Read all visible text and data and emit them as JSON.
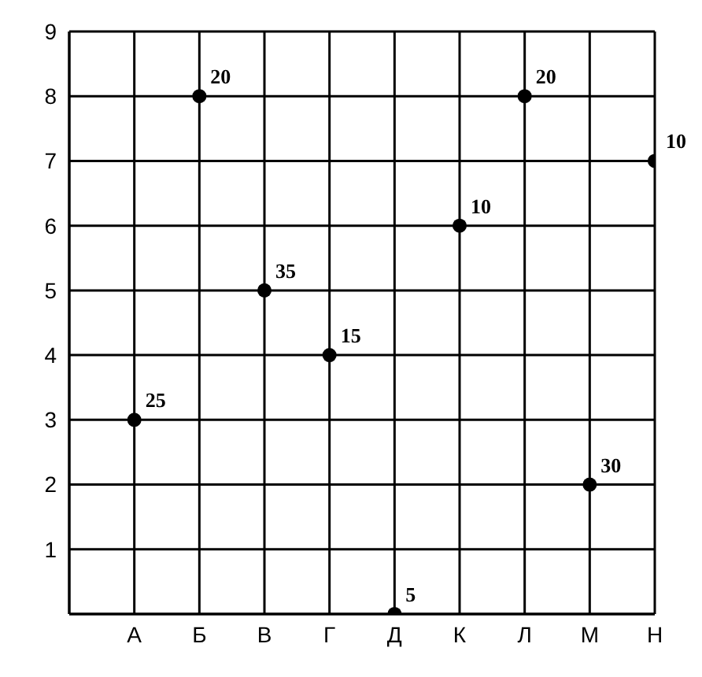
{
  "chart_data": {
    "type": "scatter",
    "categories": [
      "А",
      "Б",
      "В",
      "Г",
      "Д",
      "К",
      "Л",
      "М",
      "Н"
    ],
    "series": [
      {
        "color": "#000000",
        "values": [
          3,
          8,
          5,
          4,
          0,
          6,
          8,
          2,
          7
        ]
      }
    ],
    "annotations": [
      {
        "text": "25",
        "x": "А",
        "y": 3
      },
      {
        "text": "20",
        "x": "Б",
        "y": 8
      },
      {
        "text": "35",
        "x": "В",
        "y": 5
      },
      {
        "text": "15",
        "x": "Г",
        "y": 4
      },
      {
        "text": "5",
        "x": "Д",
        "y": 0
      },
      {
        "text": "10",
        "x": "К",
        "y": 6
      },
      {
        "text": "20",
        "x": "Л",
        "y": 8
      },
      {
        "text": "30",
        "x": "М",
        "y": 2
      },
      {
        "text": "10",
        "x": "Н",
        "y": 7
      }
    ],
    "ylim": [
      0,
      9
    ],
    "yticks": [
      {
        "value": 0,
        "label": null
      },
      1,
      2,
      3,
      4,
      5,
      6,
      7,
      8,
      9
    ],
    "grid": true,
    "marker": "circle"
  }
}
